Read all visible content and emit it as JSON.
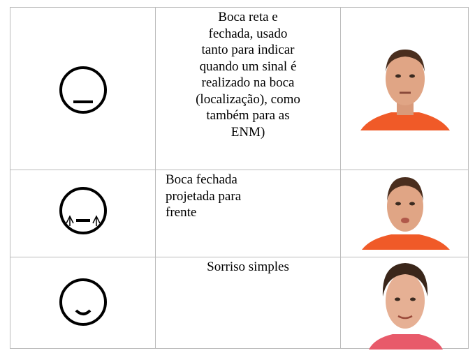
{
  "table": {
    "rows": [
      {
        "description": [
          "Boca reta e",
          "fechada, usado",
          "tanto para indicar",
          "quando um sinal é",
          "realizado na boca",
          "(localização), como",
          "também para as",
          "ENM)"
        ]
      },
      {
        "description": [
          "Boca fechada",
          "projetada para",
          "frente"
        ]
      },
      {
        "description": [
          "Sorriso simples"
        ]
      }
    ]
  }
}
